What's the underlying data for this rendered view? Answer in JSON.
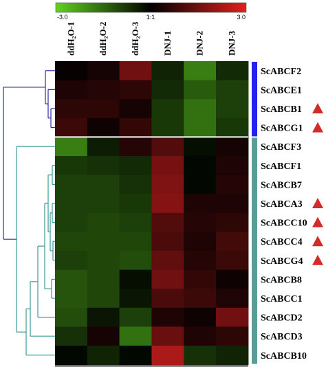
{
  "chart_data": {
    "type": "heatmap",
    "color_scale": {
      "min_label": "-3.0",
      "mid_label": "1:1",
      "max_label": "3.0",
      "min": -3.0,
      "max": 3.0,
      "low_color": "#5fd21e",
      "mid_color": "#000000",
      "high_color": "#e02020"
    },
    "columns": [
      "ddH₂O-1",
      "ddH₂O-2",
      "ddH₂O-3",
      "DNJ-1",
      "DNJ-2",
      "DNJ-3"
    ],
    "rows": [
      "ScABCF2",
      "ScABCE1",
      "ScABCB1",
      "ScABCG1",
      "ScABCF3",
      "ScABCF1",
      "ScABCB7",
      "ScABCA3",
      "ScABCC10",
      "ScABCC4",
      "ScABCG4",
      "ScABCB8",
      "ScABCC1",
      "ScABCD2",
      "ScABCD3",
      "ScABCB10"
    ],
    "values": [
      [
        0.1,
        0.3,
        1.5,
        -0.5,
        -1.8,
        -0.6
      ],
      [
        0.4,
        0.5,
        0.6,
        -0.6,
        -1.3,
        -0.9
      ],
      [
        0.6,
        0.6,
        0.3,
        -0.8,
        -1.6,
        -0.9
      ],
      [
        0.8,
        0.2,
        0.7,
        -0.8,
        -1.6,
        -0.8
      ],
      [
        -1.8,
        -0.4,
        0.5,
        1.1,
        -0.2,
        0.3
      ],
      [
        -0.8,
        -0.7,
        -0.6,
        1.6,
        -0.1,
        0.4
      ],
      [
        -0.9,
        -0.9,
        -0.7,
        1.7,
        -0.1,
        0.5
      ],
      [
        -0.9,
        -0.9,
        -0.8,
        1.8,
        0.4,
        0.4
      ],
      [
        -0.9,
        -1.0,
        -0.9,
        1.1,
        0.5,
        0.6
      ],
      [
        -1.0,
        -1.0,
        -1.0,
        1.0,
        0.4,
        0.9
      ],
      [
        -0.9,
        -1.0,
        -1.1,
        1.3,
        0.5,
        0.8
      ],
      [
        -1.2,
        -1.0,
        -0.2,
        1.5,
        0.7,
        0.2
      ],
      [
        -1.2,
        -1.0,
        -0.3,
        1.0,
        0.8,
        0.4
      ],
      [
        -1.1,
        -0.3,
        -0.9,
        0.4,
        0.2,
        1.5
      ],
      [
        -0.7,
        0.3,
        -1.6,
        1.4,
        0.4,
        0.6
      ],
      [
        -0.1,
        -0.5,
        -0.1,
        2.3,
        -0.7,
        -0.5
      ]
    ],
    "groups": [
      {
        "rows": [
          0,
          3
        ],
        "color": "#2222ee"
      },
      {
        "rows": [
          4,
          15
        ],
        "color": "#5c9c98"
      }
    ],
    "marked_rows": [
      2,
      3,
      7,
      8,
      9,
      10
    ],
    "marker_color": "#d42a2a",
    "dendrogram_color_top": "#2c2c9c",
    "dendrogram_color_bottom": "#3c9898"
  }
}
